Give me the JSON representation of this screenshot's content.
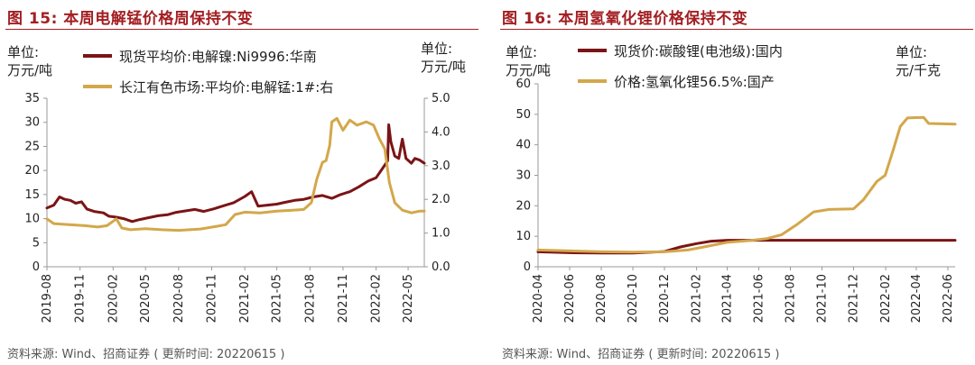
{
  "charts": [
    {
      "fig_title": "图 15:  本周电解锰价格周保持不变",
      "source": "资料来源: Wind、招商证券 ( 更新时间: 20220615 )",
      "left_unit": "单位:\n万元/吨",
      "right_unit": "单位:\n万元/吨"
    },
    {
      "fig_title": "图 16:  本周氢氧化锂价格保持不变",
      "source": "资料来源: Wind、招商证券 ( 更新时间: 20220615 )",
      "left_unit": "单位:\n万元/吨",
      "right_unit": "单位:\n元/千克"
    }
  ],
  "chart_data": [
    {
      "type": "line",
      "title": "本周电解锰价格周保持不变",
      "x_type": "date",
      "x_range": [
        "2019-08-01",
        "2022-06-15"
      ],
      "x_tick_labels": [
        "2019-08",
        "2019-11",
        "2020-02",
        "2020-05",
        "2020-08",
        "2020-11",
        "2021-02",
        "2021-05",
        "2021-08",
        "2021-11",
        "2022-02",
        "2022-05"
      ],
      "y_left": {
        "range": [
          0,
          35
        ],
        "ticks": [
          "0",
          "5",
          "10",
          "15",
          "20",
          "25",
          "30",
          "35"
        ]
      },
      "y_right": {
        "range": [
          0,
          5
        ],
        "ticks": [
          "0.0",
          "1.0",
          "2.0",
          "3.0",
          "4.0",
          "5.0"
        ]
      },
      "grid": false,
      "legend_position": "top",
      "series": [
        {
          "name": "现货平均价:电解镍:Ni9996:华南",
          "axis": "left",
          "color": "#7b1416",
          "points": [
            [
              "2019-08-01",
              12.2
            ],
            [
              "2019-08-20",
              12.8
            ],
            [
              "2019-09-05",
              14.5
            ],
            [
              "2019-09-20",
              14.0
            ],
            [
              "2019-10-05",
              13.8
            ],
            [
              "2019-10-20",
              13.2
            ],
            [
              "2019-11-05",
              13.5
            ],
            [
              "2019-11-20",
              12.0
            ],
            [
              "2019-12-10",
              11.5
            ],
            [
              "2020-01-05",
              11.2
            ],
            [
              "2020-01-20",
              10.5
            ],
            [
              "2020-02-10",
              10.3
            ],
            [
              "2020-03-01",
              10.0
            ],
            [
              "2020-03-25",
              9.4
            ],
            [
              "2020-04-15",
              9.8
            ],
            [
              "2020-05-10",
              10.2
            ],
            [
              "2020-06-05",
              10.6
            ],
            [
              "2020-07-01",
              10.8
            ],
            [
              "2020-07-25",
              11.3
            ],
            [
              "2020-08-20",
              11.6
            ],
            [
              "2020-09-15",
              11.9
            ],
            [
              "2020-10-10",
              11.5
            ],
            [
              "2020-11-05",
              12.0
            ],
            [
              "2020-12-01",
              12.6
            ],
            [
              "2021-01-01",
              13.3
            ],
            [
              "2021-02-01",
              14.6
            ],
            [
              "2021-02-20",
              15.6
            ],
            [
              "2021-03-10",
              12.6
            ],
            [
              "2021-04-05",
              12.8
            ],
            [
              "2021-05-01",
              13.0
            ],
            [
              "2021-05-25",
              13.4
            ],
            [
              "2021-06-20",
              13.8
            ],
            [
              "2021-07-15",
              14.0
            ],
            [
              "2021-08-10",
              14.5
            ],
            [
              "2021-09-05",
              14.8
            ],
            [
              "2021-10-01",
              14.2
            ],
            [
              "2021-10-25",
              15.0
            ],
            [
              "2021-11-20",
              15.6
            ],
            [
              "2021-12-15",
              16.6
            ],
            [
              "2022-01-10",
              17.8
            ],
            [
              "2022-02-01",
              18.5
            ],
            [
              "2022-02-15",
              20.0
            ],
            [
              "2022-03-05",
              22.0
            ],
            [
              "2022-03-08",
              29.5
            ],
            [
              "2022-03-14",
              26.0
            ],
            [
              "2022-03-25",
              23.0
            ],
            [
              "2022-04-05",
              22.5
            ],
            [
              "2022-04-15",
              26.5
            ],
            [
              "2022-04-25",
              22.5
            ],
            [
              "2022-05-10",
              21.5
            ],
            [
              "2022-05-20",
              22.5
            ],
            [
              "2022-06-01",
              22.2
            ],
            [
              "2022-06-15",
              21.5
            ]
          ]
        },
        {
          "name": "长江有色市场:平均价:电解锰:1#:右",
          "axis": "right",
          "color": "#d3a74b",
          "points": [
            [
              "2019-08-01",
              1.42
            ],
            [
              "2019-08-20",
              1.28
            ],
            [
              "2019-10-01",
              1.25
            ],
            [
              "2019-11-15",
              1.22
            ],
            [
              "2019-12-20",
              1.18
            ],
            [
              "2020-01-15",
              1.22
            ],
            [
              "2020-02-10",
              1.42
            ],
            [
              "2020-02-25",
              1.15
            ],
            [
              "2020-03-20",
              1.1
            ],
            [
              "2020-05-01",
              1.13
            ],
            [
              "2020-06-15",
              1.1
            ],
            [
              "2020-08-01",
              1.08
            ],
            [
              "2020-10-01",
              1.12
            ],
            [
              "2020-11-15",
              1.2
            ],
            [
              "2020-12-10",
              1.25
            ],
            [
              "2021-01-05",
              1.55
            ],
            [
              "2021-02-01",
              1.62
            ],
            [
              "2021-03-15",
              1.6
            ],
            [
              "2021-05-01",
              1.65
            ],
            [
              "2021-06-15",
              1.68
            ],
            [
              "2021-07-15",
              1.7
            ],
            [
              "2021-08-05",
              1.9
            ],
            [
              "2021-08-20",
              2.6
            ],
            [
              "2021-09-05",
              3.1
            ],
            [
              "2021-09-15",
              3.15
            ],
            [
              "2021-09-25",
              3.6
            ],
            [
              "2021-10-01",
              4.3
            ],
            [
              "2021-10-15",
              4.4
            ],
            [
              "2021-11-01",
              4.05
            ],
            [
              "2021-11-20",
              4.35
            ],
            [
              "2021-12-10",
              4.2
            ],
            [
              "2022-01-05",
              4.3
            ],
            [
              "2022-01-25",
              4.2
            ],
            [
              "2022-02-10",
              3.8
            ],
            [
              "2022-02-25",
              3.5
            ],
            [
              "2022-03-10",
              2.5
            ],
            [
              "2022-03-25",
              1.9
            ],
            [
              "2022-04-15",
              1.68
            ],
            [
              "2022-05-10",
              1.6
            ],
            [
              "2022-06-01",
              1.65
            ],
            [
              "2022-06-15",
              1.65
            ]
          ]
        }
      ]
    },
    {
      "type": "line",
      "title": "本周氢氧化锂价格保持不变",
      "x_type": "date",
      "x_range": [
        "2020-04-01",
        "2022-06-15"
      ],
      "x_tick_labels": [
        "2020-04",
        "2020-06",
        "2020-08",
        "2020-10",
        "2020-12",
        "2021-02",
        "2021-04",
        "2021-06",
        "2021-08",
        "2021-10",
        "2021-12",
        "2022-02",
        "2022-04",
        "2022-06"
      ],
      "y_left": {
        "range": [
          0,
          60
        ],
        "ticks": [
          "0",
          "10",
          "20",
          "30",
          "40",
          "50",
          "60"
        ]
      },
      "grid": false,
      "legend_position": "top",
      "series": [
        {
          "name": "现货价:碳酸锂(电池级):国内",
          "axis": "left",
          "color": "#7b1416",
          "points": [
            [
              "2020-04-01",
              4.9
            ],
            [
              "2020-06-01",
              4.6
            ],
            [
              "2020-08-01",
              4.5
            ],
            [
              "2020-10-01",
              4.5
            ],
            [
              "2020-12-01",
              5.0
            ],
            [
              "2021-01-01",
              6.5
            ],
            [
              "2021-02-01",
              7.6
            ],
            [
              "2021-03-01",
              8.4
            ],
            [
              "2021-04-01",
              8.7
            ],
            [
              "2022-06-15",
              8.7
            ]
          ]
        },
        {
          "name": "价格:氢氧化锂56.5%:国产",
          "axis": "left",
          "color": "#d3a74b",
          "points": [
            [
              "2020-04-01",
              5.5
            ],
            [
              "2020-06-01",
              5.2
            ],
            [
              "2020-08-01",
              4.9
            ],
            [
              "2020-10-01",
              4.8
            ],
            [
              "2020-12-01",
              4.9
            ],
            [
              "2021-01-15",
              5.5
            ],
            [
              "2021-02-15",
              6.5
            ],
            [
              "2021-04-01",
              8.0
            ],
            [
              "2021-05-15",
              8.6
            ],
            [
              "2021-06-15",
              9.2
            ],
            [
              "2021-07-15",
              10.5
            ],
            [
              "2021-08-15",
              14.0
            ],
            [
              "2021-09-15",
              18.0
            ],
            [
              "2021-10-15",
              18.8
            ],
            [
              "2021-12-01",
              19.0
            ],
            [
              "2021-12-20",
              22.0
            ],
            [
              "2022-01-15",
              28.0
            ],
            [
              "2022-01-31",
              30.0
            ],
            [
              "2022-02-15",
              38.0
            ],
            [
              "2022-03-01",
              46.0
            ],
            [
              "2022-03-15",
              48.8
            ],
            [
              "2022-04-15",
              49.0
            ],
            [
              "2022-04-25",
              47.0
            ],
            [
              "2022-06-15",
              46.8
            ]
          ]
        }
      ]
    }
  ]
}
